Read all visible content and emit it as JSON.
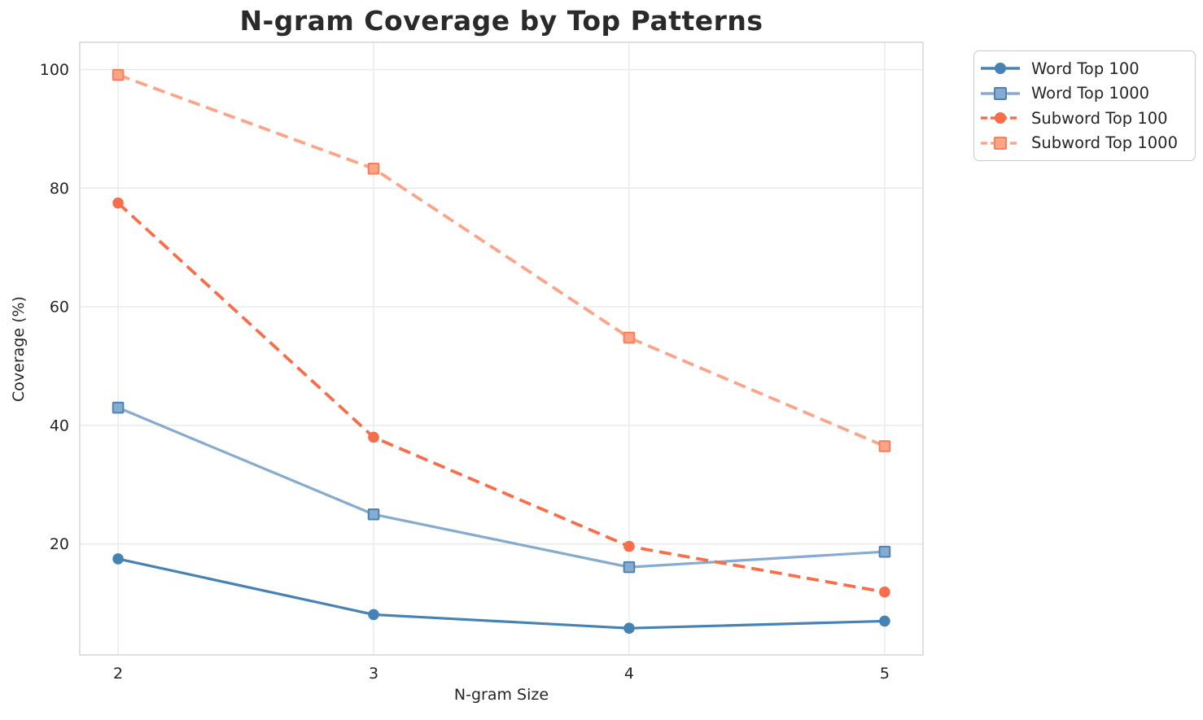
{
  "chart_data": {
    "type": "line",
    "title": "N-gram Coverage by Top Patterns",
    "xlabel": "N-gram Size",
    "ylabel": "Coverage (%)",
    "grid": true,
    "legend_position": "outside-top-right",
    "x": [
      2,
      3,
      4,
      5
    ],
    "x_tick_labels": [
      "2",
      "3",
      "4",
      "5"
    ],
    "y_ticks": [
      20,
      40,
      60,
      80,
      100
    ],
    "y_tick_labels": [
      "20",
      "40",
      "60",
      "80",
      "100"
    ],
    "xlim": [
      1.85,
      5.15
    ],
    "ylim": [
      1.3,
      104.6
    ],
    "series": [
      {
        "name": "Word Top 100",
        "values": [
          17.5,
          8.1,
          5.8,
          7.0
        ],
        "color": "#4682B4",
        "marker": "circle",
        "marker_edge": "#4682B4",
        "line_style": "solid"
      },
      {
        "name": "Word Top 1000",
        "values": [
          43.0,
          25.0,
          16.1,
          18.7
        ],
        "color": "#85ABCF",
        "marker": "square",
        "marker_edge": "#4D82B4",
        "line_style": "solid"
      },
      {
        "name": "Subword Top 100",
        "values": [
          77.5,
          38.0,
          19.6,
          11.9
        ],
        "color": "#F96D4A",
        "marker": "circle",
        "marker_edge": "#F96D4A",
        "line_style": "dashed"
      },
      {
        "name": "Subword Top 1000",
        "values": [
          99.1,
          83.3,
          54.8,
          36.5
        ],
        "color": "#FBA488",
        "marker": "square",
        "marker_edge": "#F97D59",
        "line_style": "dashed"
      }
    ],
    "colors": {
      "grid": "#E9E9E9",
      "spine": "#D9D9D9",
      "tick_text": "#262626",
      "title_text": "#2A2A2A"
    }
  }
}
